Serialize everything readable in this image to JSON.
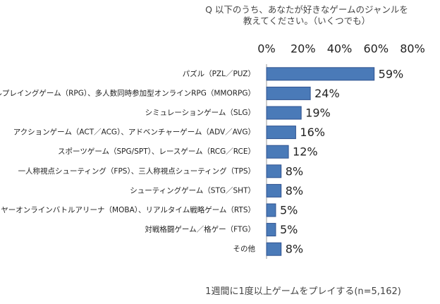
{
  "chart_data": {
    "type": "bar",
    "orientation": "horizontal",
    "title": "Q 以下のうち、あなたが好きなゲームのジャンルを教えてください。（いくつでも）",
    "note": "1週間に1度以上ゲームをプレイする(n=5,162)",
    "categories": [
      "パズル（PZL／PUZ）",
      "ロールプレイングゲーム（RPG）、多人数同時参加型オンラインRPG（MMORPG）",
      "シミュレーションゲーム（SLG）",
      "アクションゲーム（ACT／ACG）、アドベンチャーゲーム（ADV／AVG）",
      "スポーツゲーム（SPG/SPT）、レースゲーム（RCG／RCE）",
      "一人称視点シューティング（FPS）、三人称視点シューティング（TPS）",
      "シューティングゲーム（STG／SHT）",
      "マルチプレイヤーオンラインバトルアリーナ（MOBA）、リアルタイム戦略ゲーム（RTS）",
      "対戦格闘ゲーム／格ゲー（FTG）",
      "その他"
    ],
    "values": [
      59,
      24,
      19,
      16,
      12,
      8,
      8,
      5,
      5,
      8
    ],
    "value_labels": [
      "59%",
      "24%",
      "19%",
      "16%",
      "12%",
      "8%",
      "8%",
      "5%",
      "5%",
      "8%"
    ],
    "color": "#4a7ab8",
    "xlim": [
      0,
      80
    ],
    "xticks": [
      {
        "value": 0,
        "label": "0%"
      },
      {
        "value": 20,
        "label": "20%"
      },
      {
        "value": 40,
        "label": "40%"
      },
      {
        "value": 60,
        "label": "60%"
      },
      {
        "value": 80,
        "label": "80%"
      }
    ]
  }
}
